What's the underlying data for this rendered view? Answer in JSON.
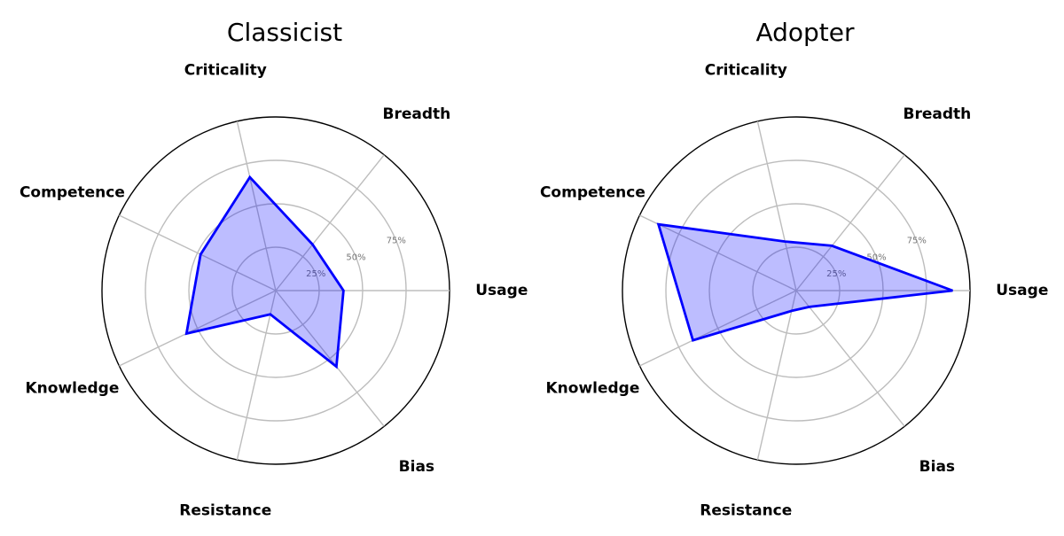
{
  "chart_data": [
    {
      "type": "radar",
      "title": "Classicist",
      "axes": [
        "Usage",
        "Breadth",
        "Criticality",
        "Competence",
        "Knowledge",
        "Resistance",
        "Bias"
      ],
      "tick_labels": [
        "25%",
        "50%",
        "75%"
      ],
      "rlim": [
        0,
        100
      ],
      "grid": true,
      "series": [
        {
          "values": [
            39,
            34,
            67,
            48,
            57,
            14,
            56
          ],
          "color": "#0000ff"
        }
      ]
    },
    {
      "type": "radar",
      "title": "Adopter",
      "axes": [
        "Usage",
        "Breadth",
        "Criticality",
        "Competence",
        "Knowledge",
        "Resistance",
        "Bias"
      ],
      "tick_labels": [
        "25%",
        "50%",
        "75%"
      ],
      "rlim": [
        0,
        100
      ],
      "grid": true,
      "series": [
        {
          "values": [
            90,
            33,
            29,
            88,
            66,
            12,
            12
          ],
          "color": "#0000ff"
        }
      ]
    }
  ]
}
